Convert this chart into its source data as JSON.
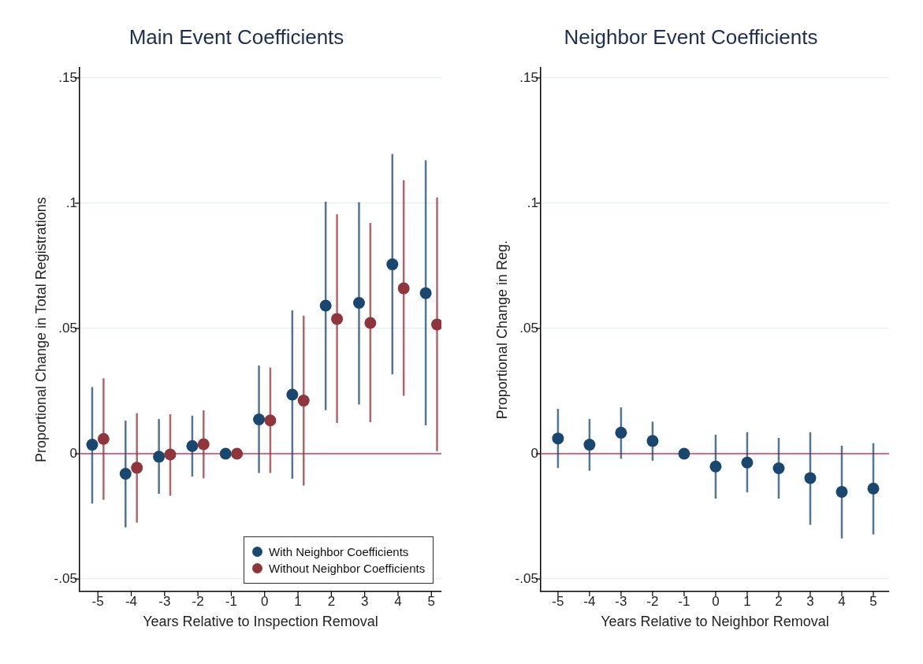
{
  "chart_data": [
    {
      "type": "scatter",
      "title": "Main Event Coefficients",
      "xlabel": "Years Relative to Inspection Removal",
      "ylabel": "Proportional Change in Total Registrations",
      "xlim": [
        -5.55,
        5.3
      ],
      "xticks": [
        -5,
        -4,
        -3,
        -2,
        -1,
        0,
        1,
        2,
        3,
        4,
        5
      ],
      "ylim": [
        -0.055,
        0.154
      ],
      "yticks": [
        {
          "value": -0.05,
          "label": "-.05"
        },
        0,
        {
          "value": 0.05,
          "label": ".05"
        },
        {
          "value": 0.1,
          "label": ".1"
        },
        {
          "value": 0.15,
          "label": ".15"
        }
      ],
      "grid": "y",
      "marker": "circle",
      "legend": "bottom right",
      "ref_lines": [
        {
          "axis": "y",
          "value": 0,
          "color": "#d43c5c"
        }
      ],
      "series": [
        {
          "name": "With Neighbor Coefficients",
          "color": "#1a476f",
          "x": [
            -5.17,
            -4.17,
            -3.17,
            -2.17,
            -1.17,
            -0.17,
            0.83,
            1.83,
            2.83,
            3.83,
            4.83
          ],
          "values": [
            0.0036,
            -0.008,
            -0.0012,
            0.0031,
            0,
            0.0137,
            0.0236,
            0.0591,
            0.0602,
            0.0756,
            0.0641
          ],
          "errors": [
            [
              -0.0199,
              0.0266
            ],
            [
              -0.0294,
              0.0132
            ],
            [
              -0.016,
              0.0139
            ],
            [
              -0.0091,
              0.0152
            ],
            null,
            [
              -0.0077,
              0.0352
            ],
            [
              -0.01,
              0.0572
            ],
            [
              0.0174,
              0.1006
            ],
            [
              0.0197,
              0.1004
            ],
            [
              0.0317,
              0.1196
            ],
            [
              0.0113,
              0.1171
            ]
          ]
        },
        {
          "name": "Without Neighbor Coefficients",
          "color": "#90353b",
          "x": [
            -4.83,
            -3.83,
            -2.83,
            -1.83,
            -0.83,
            0.17,
            1.17,
            2.17,
            3.17,
            4.17,
            5.17
          ],
          "values": [
            0.0059,
            -0.0056,
            -0.0003,
            0.0038,
            0,
            0.0133,
            0.0212,
            0.0538,
            0.0522,
            0.066,
            0.0516
          ],
          "errors": [
            [
              -0.0184,
              0.0301
            ],
            [
              -0.0275,
              0.0162
            ],
            [
              -0.0168,
              0.0158
            ],
            [
              -0.0098,
              0.0173
            ],
            null,
            [
              -0.0077,
              0.0344
            ],
            [
              -0.0127,
              0.0551
            ],
            [
              0.0123,
              0.0956
            ],
            [
              0.0126,
              0.0921
            ],
            [
              0.0231,
              0.1092
            ],
            [
              0.001,
              0.1023
            ]
          ]
        }
      ]
    },
    {
      "type": "scatter",
      "title": "Neighbor Event Coefficients",
      "xlabel": "Years Relative to Neighbor Removal",
      "ylabel": "Proportional Change in Reg.",
      "xlim": [
        -5.55,
        5.5
      ],
      "xticks": [
        -5,
        -4,
        -3,
        -2,
        -1,
        0,
        1,
        2,
        3,
        4,
        5
      ],
      "ylim": [
        -0.055,
        0.154
      ],
      "yticks": [
        {
          "value": -0.05,
          "label": "-.05"
        },
        0,
        {
          "value": 0.05,
          "label": ".05"
        },
        {
          "value": 0.1,
          "label": ".1"
        },
        {
          "value": 0.15,
          "label": ".15"
        }
      ],
      "grid": "y",
      "marker": "circle",
      "ref_lines": [
        {
          "axis": "y",
          "value": 0,
          "color": "#d43c5c"
        }
      ],
      "series": [
        {
          "color": "#1a476f",
          "x": [
            -5,
            -4,
            -3,
            -2,
            -1,
            0,
            1,
            2,
            3,
            4,
            5
          ],
          "values": [
            0.0061,
            0.0036,
            0.0084,
            0.0051,
            0,
            -0.0051,
            -0.0035,
            -0.0058,
            -0.0097,
            -0.0152,
            -0.0139
          ],
          "errors": [
            [
              -0.0057,
              0.0179
            ],
            [
              -0.0068,
              0.0139
            ],
            [
              -0.002,
              0.0185
            ],
            [
              -0.0028,
              0.0128
            ],
            null,
            [
              -0.0179,
              0.0076
            ],
            [
              -0.0154,
              0.0086
            ],
            [
              -0.0179,
              0.0063
            ],
            [
              -0.0284,
              0.0086
            ],
            [
              -0.0338,
              0.0032
            ],
            [
              -0.0322,
              0.0042
            ]
          ]
        }
      ]
    }
  ]
}
